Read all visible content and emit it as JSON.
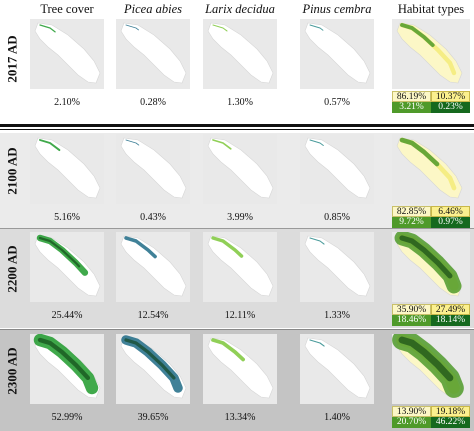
{
  "columns": [
    "Tree cover",
    "Picea abies",
    "Larix decidua",
    "Pinus cembra",
    "Habitat types"
  ],
  "colors": {
    "tree_cover": "#1e9a2c",
    "tree_cover_dense": "#0c3d10",
    "picea": "#1f6b86",
    "larix": "#7cc73a",
    "pinus": "#2a8a8a",
    "habitat_pale": "#fcf7c6",
    "habitat_yellow": "#f4eb7c",
    "habitat_green": "#4f9a2a",
    "habitat_dark": "#15691e"
  },
  "rows": [
    {
      "label": "2017 AD",
      "tree_cover": 0.021,
      "picea": 0.0028,
      "larix": 0.013,
      "pinus": 0.0057,
      "values": [
        "2.10%",
        "0.28%",
        "1.30%",
        "0.57%"
      ],
      "habitat": [
        "86.19%",
        "10.37%",
        "3.21%",
        "0.23%"
      ]
    },
    {
      "label": "2100 AD",
      "tree_cover": 0.0516,
      "picea": 0.0043,
      "larix": 0.0399,
      "pinus": 0.0085,
      "values": [
        "5.16%",
        "0.43%",
        "3.99%",
        "0.85%"
      ],
      "habitat": [
        "82.85%",
        "6.46%",
        "9.72%",
        "0.97%"
      ]
    },
    {
      "label": "2200 AD",
      "tree_cover": 0.2544,
      "picea": 0.1254,
      "larix": 0.1211,
      "pinus": 0.0133,
      "values": [
        "25.44%",
        "12.54%",
        "12.11%",
        "1.33%"
      ],
      "habitat": [
        "35.90%",
        "27.49%",
        "18.46%",
        "18.14%"
      ]
    },
    {
      "label": "2300 AD",
      "tree_cover": 0.5299,
      "picea": 0.3965,
      "larix": 0.1334,
      "pinus": 0.014,
      "values": [
        "52.99%",
        "39.65%",
        "13.34%",
        "1.40%"
      ],
      "habitat": [
        "13.90%",
        "19.18%",
        "20.70%",
        "46.22%"
      ]
    }
  ]
}
